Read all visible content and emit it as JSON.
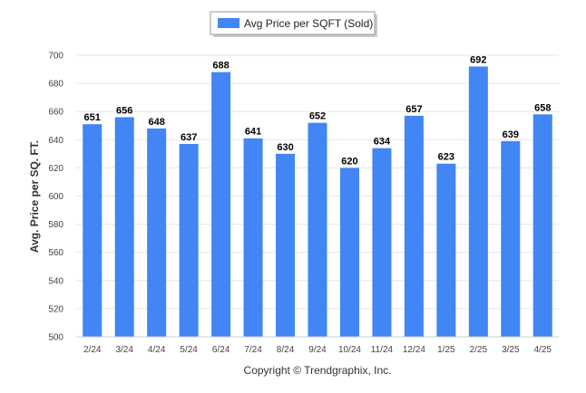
{
  "colors": {
    "bar": "#4285f4",
    "grid": "#e6e6e6",
    "axis": "#cfcfcf"
  },
  "legend": {
    "label": "Avg Price per SQFT (Sold)",
    "placement": "top-center"
  },
  "footer": {
    "text": "Copyright © Trendgraphix, Inc."
  },
  "chart_data": {
    "type": "bar",
    "title": "",
    "xlabel": "",
    "ylabel": "Avg. Price per SQ. FT.",
    "ylim": [
      500,
      700
    ],
    "ytick_step": 20,
    "grid": true,
    "categories": [
      "2/24",
      "3/24",
      "4/24",
      "5/24",
      "6/24",
      "7/24",
      "8/24",
      "9/24",
      "10/24",
      "11/24",
      "12/24",
      "1/25",
      "2/25",
      "3/25",
      "4/25"
    ],
    "series": [
      {
        "name": "Avg Price per SQFT (Sold)",
        "values": [
          651,
          656,
          648,
          637,
          688,
          641,
          630,
          652,
          620,
          634,
          657,
          623,
          692,
          639,
          658
        ]
      }
    ]
  }
}
